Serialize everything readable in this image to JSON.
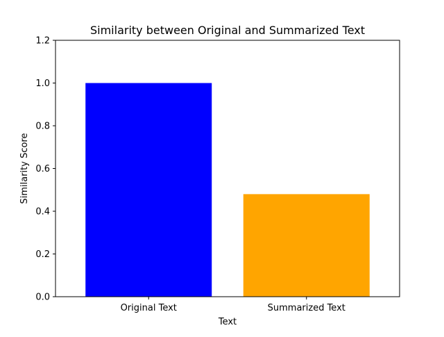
{
  "chart_data": {
    "type": "bar",
    "title": "Similarity between Original and Summarized Text",
    "xlabel": "Text",
    "ylabel": "Similarity Score",
    "categories": [
      "Original Text",
      "Summarized Text"
    ],
    "values": [
      1.0,
      0.48
    ],
    "colors": [
      "#0000ff",
      "#ffa500"
    ],
    "ylim": [
      0,
      1.2
    ],
    "yticks": [
      0.0,
      0.2,
      0.4,
      0.6,
      0.8,
      1.0,
      1.2
    ],
    "ytick_labels": [
      "0.0",
      "0.2",
      "0.4",
      "0.6",
      "0.8",
      "1.0",
      "1.2"
    ],
    "grid": false,
    "legend": false
  }
}
